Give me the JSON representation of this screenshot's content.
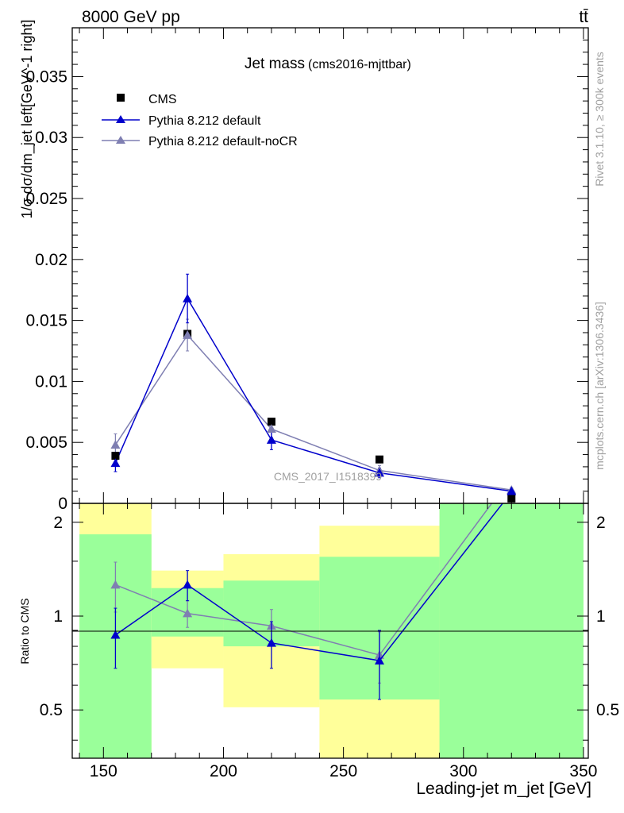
{
  "header": {
    "left": "8000 GeV pp",
    "right": "tt̄"
  },
  "side_text": {
    "rivet": "Rivet 3.1.10, ≥ 300k events",
    "mcplots": "mcplots.cern.ch [arXiv:1306.3436]"
  },
  "colors": {
    "data": "#000000",
    "default": "#0000cc",
    "nocr": "#7f7fb2",
    "band_inner": "#9aff9a",
    "band_outer": "#ffff9a"
  },
  "chart_data": [
    {
      "type": "line",
      "title": "Jet mass",
      "subtitle": "(cms2016-mjttbar)",
      "ylabel": "1/σ dσ/dm_jet left[GeV^-1 right]",
      "ylim": [
        0,
        0.039
      ],
      "yticks": [
        "0",
        "0.005",
        "0.01",
        "0.015",
        "0.02",
        "0.025",
        "0.03",
        "0.035"
      ],
      "xlim": [
        137,
        352
      ],
      "watermark": "CMS_2017_I1518399",
      "legend_position": "top-left",
      "x": [
        155,
        185,
        220,
        265,
        320
      ],
      "series": [
        {
          "name": "CMS",
          "values": [
            0.0039,
            0.0139,
            0.0067,
            0.0036,
            0.0004
          ]
        },
        {
          "name": "Pythia 8.212 default",
          "values": [
            0.0033,
            0.0168,
            0.0052,
            0.0025,
            0.001
          ],
          "errors": [
            0.0007,
            0.002,
            0.0008,
            0.0004,
            0.0002
          ]
        },
        {
          "name": "Pythia 8.212 default-noCR",
          "values": [
            0.0048,
            0.0138,
            0.0061,
            0.0027,
            0.0011
          ],
          "errors": [
            0.0009,
            0.0013,
            0.0007,
            0.0004,
            0.0002
          ]
        }
      ]
    },
    {
      "type": "line",
      "ylabel": "Ratio to CMS",
      "xlabel": "Leading-jet m_jet [GeV]",
      "ylim": [
        0.35,
        2.3
      ],
      "yticks": [
        "0.5",
        "1",
        "2"
      ],
      "xticks": [
        "150",
        "200",
        "250",
        "300",
        "350"
      ],
      "xlim": [
        137,
        352
      ],
      "uncertainty_bands": [
        {
          "x_range": [
            140,
            170
          ],
          "inner": [
            0.35,
            1.83
          ],
          "outer": [
            0.35,
            2.3
          ]
        },
        {
          "x_range": [
            170,
            200
          ],
          "inner": [
            0.86,
            1.23
          ],
          "outer": [
            0.68,
            1.4
          ]
        },
        {
          "x_range": [
            200,
            240
          ],
          "inner": [
            0.8,
            1.3
          ],
          "outer": [
            0.51,
            1.58
          ]
        },
        {
          "x_range": [
            240,
            290
          ],
          "inner": [
            0.54,
            1.55
          ],
          "outer": [
            0.35,
            1.95
          ]
        },
        {
          "x_range": [
            290,
            350
          ],
          "inner": [
            0.35,
            2.3
          ],
          "outer": [
            0.35,
            2.3
          ]
        }
      ],
      "x": [
        155,
        185,
        220,
        265,
        320
      ],
      "series": [
        {
          "name": "Pythia 8.212 default",
          "values": [
            0.87,
            1.26,
            0.82,
            0.72,
            2.5
          ],
          "errors": [
            0.19,
            0.14,
            0.14,
            0.18,
            0
          ]
        },
        {
          "name": "Pythia 8.212 default-noCR",
          "values": [
            1.26,
            1.02,
            0.93,
            0.75,
            2.8
          ],
          "errors": [
            0.23,
            0.1,
            0.12,
            0.14,
            0
          ]
        }
      ]
    }
  ]
}
